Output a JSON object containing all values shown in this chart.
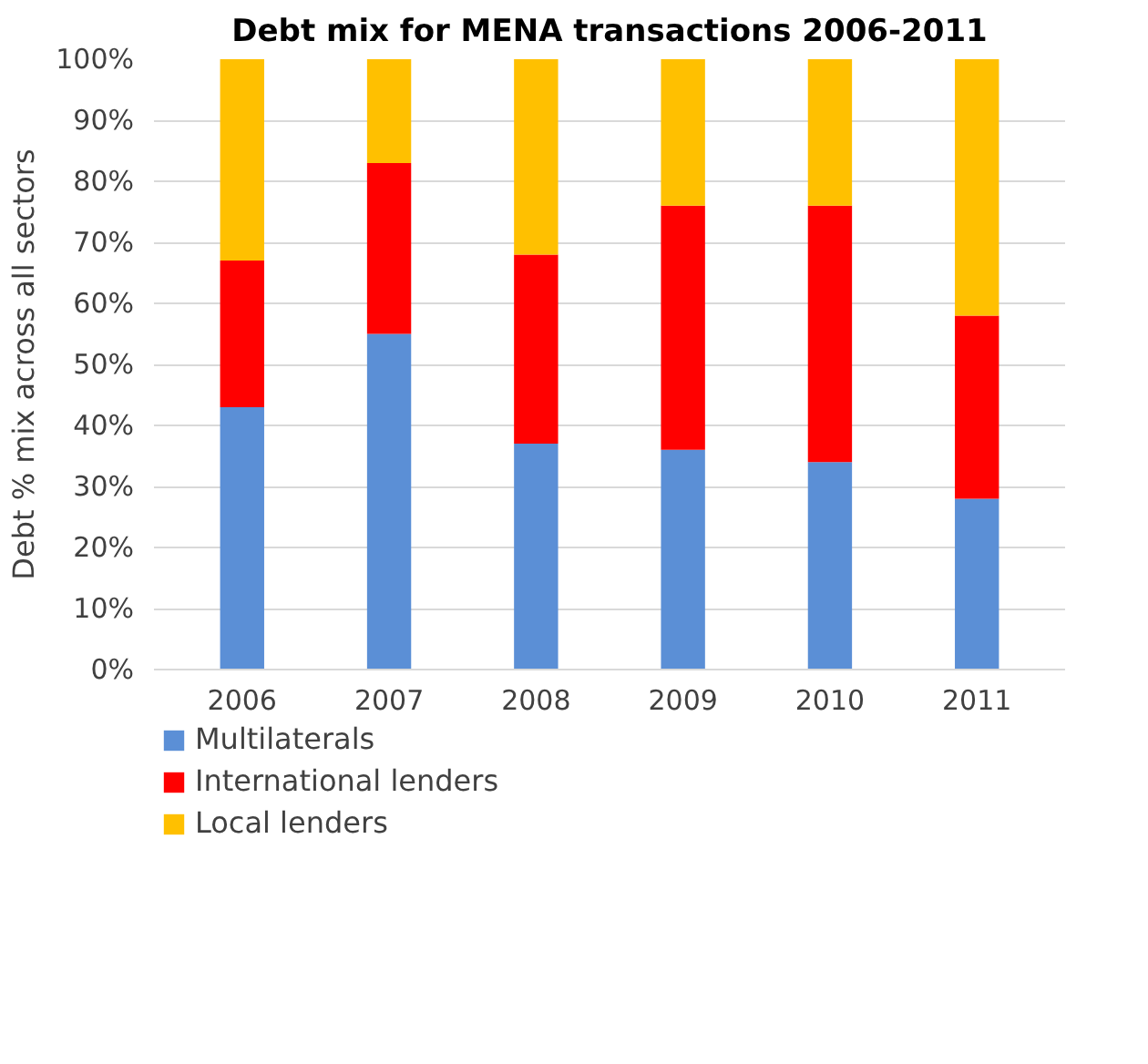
{
  "chart_data": {
    "type": "bar",
    "stacked": true,
    "title": "Debt mix for MENA transactions 2006-2011",
    "ylabel": "Debt % mix across all sectors",
    "categories": [
      "2006",
      "2007",
      "2008",
      "2009",
      "2010",
      "2011"
    ],
    "series": [
      {
        "name": "Multilaterals",
        "color": "#5b8fd6",
        "values": [
          43,
          55,
          37,
          36,
          34,
          28
        ]
      },
      {
        "name": "International lenders",
        "color": "#ff0000",
        "values": [
          24,
          28,
          31,
          40,
          42,
          30
        ]
      },
      {
        "name": "Local lenders",
        "color": "#ffc000",
        "values": [
          33,
          17,
          32,
          24,
          24,
          42
        ]
      }
    ],
    "ylim": [
      0,
      100
    ],
    "yticks": [
      {
        "value": 0,
        "label": "0%"
      },
      {
        "value": 10,
        "label": "10%"
      },
      {
        "value": 20,
        "label": "20%"
      },
      {
        "value": 30,
        "label": "30%"
      },
      {
        "value": 40,
        "label": "40%"
      },
      {
        "value": 50,
        "label": "50%"
      },
      {
        "value": 60,
        "label": "60%"
      },
      {
        "value": 70,
        "label": "70%"
      },
      {
        "value": 80,
        "label": "80%"
      },
      {
        "value": 90,
        "label": "90%"
      },
      {
        "value": 100,
        "label": "100%"
      }
    ],
    "grid": "y",
    "legend": "bottom left"
  }
}
